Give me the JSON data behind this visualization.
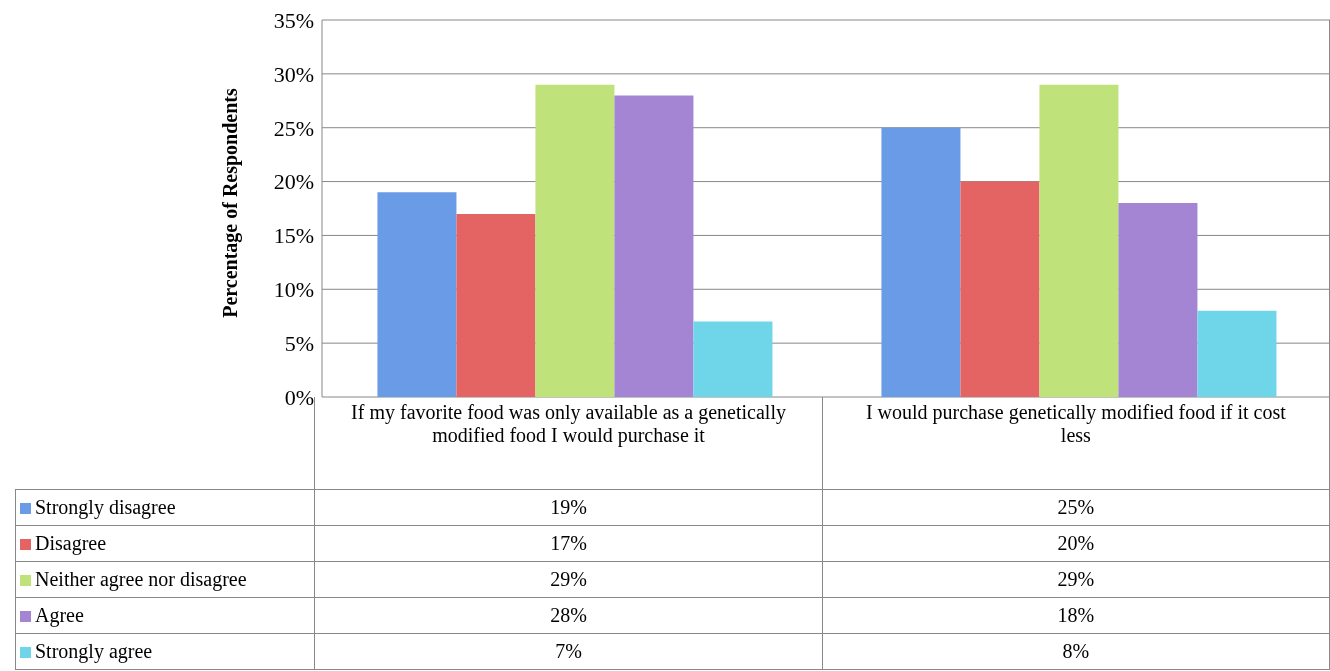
{
  "chart_data": {
    "type": "bar",
    "ylabel": "Percentage of Respondents",
    "categories": [
      "If my favorite food was only available as a genetically modified food I would purchase it",
      "I would purchase genetically modified food if it cost less"
    ],
    "series": [
      {
        "name": "Strongly disagree",
        "color": "#6a9be6",
        "values": [
          19,
          25
        ],
        "value_labels": [
          "19%",
          "25%"
        ]
      },
      {
        "name": "Disagree",
        "color": "#e46464",
        "values": [
          17,
          20
        ],
        "value_labels": [
          "17%",
          "20%"
        ]
      },
      {
        "name": "Neither agree nor disagree",
        "color": "#bfe27a",
        "values": [
          29,
          29
        ],
        "value_labels": [
          "29%",
          "29%"
        ]
      },
      {
        "name": "Agree",
        "color": "#a385d4",
        "values": [
          28,
          18
        ],
        "value_labels": [
          "28%",
          "18%"
        ]
      },
      {
        "name": "Strongly agree",
        "color": "#6fd6ea",
        "values": [
          7,
          8
        ],
        "value_labels": [
          "7%",
          "8%"
        ]
      }
    ],
    "ylim": [
      0,
      35
    ],
    "yticks": [
      {
        "value": 0,
        "label": "0%"
      },
      {
        "value": 5,
        "label": "5%"
      },
      {
        "value": 10,
        "label": "10%"
      },
      {
        "value": 15,
        "label": "15%"
      },
      {
        "value": 20,
        "label": "20%"
      },
      {
        "value": 25,
        "label": "25%"
      },
      {
        "value": 30,
        "label": "30%"
      },
      {
        "value": 35,
        "label": "35%"
      }
    ],
    "grid": "y",
    "legend": "bottom"
  }
}
